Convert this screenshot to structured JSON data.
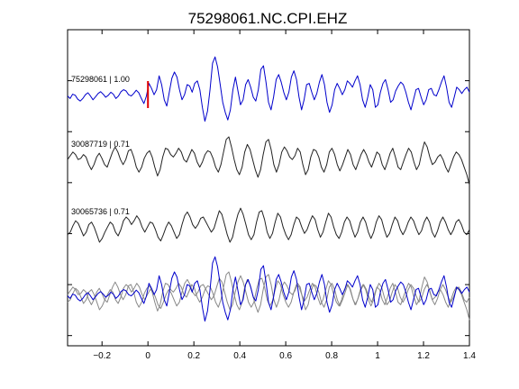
{
  "chart_data": {
    "type": "line",
    "title": "75298061.NC.CPI.EHZ",
    "xlabel": "",
    "ylabel": "",
    "xlim": [
      -0.35,
      1.4
    ],
    "x_ticks": [
      -0.2,
      0,
      0.2,
      0.4,
      0.6,
      0.8,
      1,
      1.2,
      1.4
    ],
    "x_tick_labels": [
      "−0.2",
      "0",
      "0.2",
      "0.4",
      "0.6",
      "0.8",
      "1",
      "1.2",
      "1.4"
    ],
    "grid": false,
    "pick_time": 0,
    "pick_color": "#e00000",
    "colors": {
      "primary": "#0000cc",
      "secondary": "#222222",
      "overlay_gray": "#888888"
    },
    "traces": [
      {
        "label": "75298061 | 1.00",
        "color": "#0000cc",
        "y": [
          0.05,
          -0.05,
          0.12,
          0.08,
          -0.08,
          -0.15,
          -0.05,
          0.1,
          0.18,
          0.05,
          -0.1,
          0.02,
          0.15,
          0.22,
          0.12,
          0.0,
          0.08,
          0.2,
          0.12,
          -0.05,
          0.05,
          0.22,
          0.3,
          0.25,
          0.1,
          0.05,
          0.15,
          0.28,
          0.18,
          -0.05,
          -0.25,
          0.05,
          0.55,
          0.35,
          0.1,
          0.3,
          0.85,
          0.5,
          -0.1,
          -0.35,
          0.2,
          0.75,
          1.0,
          0.8,
          0.3,
          -0.1,
          0.1,
          0.5,
          0.45,
          0.2,
          0.55,
          0.65,
          0.3,
          -0.4,
          -0.95,
          -0.55,
          0.3,
          1.35,
          1.6,
          1.2,
          0.5,
          -0.2,
          -0.6,
          -0.9,
          -0.5,
          0.3,
          0.8,
          0.25,
          -0.3,
          -0.1,
          0.5,
          0.7,
          0.4,
          0.0,
          -0.15,
          0.3,
          1.1,
          1.25,
          0.6,
          -0.2,
          -0.5,
          0.0,
          0.7,
          0.9,
          0.6,
          0.2,
          -0.1,
          0.2,
          0.8,
          1.05,
          0.7,
          0.0,
          -0.5,
          -0.1,
          0.5,
          0.55,
          0.2,
          -0.1,
          0.15,
          0.6,
          0.9,
          0.5,
          -0.2,
          -0.6,
          -0.3,
          0.3,
          0.55,
          0.35,
          0.1,
          0.3,
          0.65,
          0.55,
          0.4,
          0.65,
          0.85,
          0.5,
          -0.1,
          -0.4,
          0.0,
          0.5,
          0.3,
          -0.4,
          -0.3,
          0.2,
          0.55,
          0.7,
          0.3,
          -0.2,
          -0.1,
          0.25,
          0.45,
          0.6,
          0.5,
          0.2,
          -0.2,
          -0.5,
          -0.1,
          0.3,
          0.35,
          0.0,
          -0.3,
          -0.1,
          0.3,
          0.35,
          0.1,
          0.05,
          0.3,
          0.6,
          0.85,
          0.4,
          -0.2,
          -0.4,
          0.0,
          0.4,
          0.3,
          0.15,
          0.3,
          0.4,
          0.2
        ]
      },
      {
        "label": "30087719 | 0.71",
        "color": "#222222",
        "y": [
          0.1,
          0.25,
          0.4,
          0.3,
          0.1,
          0.15,
          0.3,
          0.2,
          -0.1,
          -0.3,
          -0.1,
          0.2,
          0.35,
          0.15,
          -0.1,
          -0.2,
          0.1,
          0.4,
          0.6,
          0.4,
          0.1,
          -0.1,
          0.1,
          0.45,
          0.5,
          0.2,
          -0.2,
          -0.4,
          -0.2,
          0.15,
          0.35,
          0.45,
          0.2,
          -0.2,
          -0.55,
          -0.3,
          0.2,
          0.55,
          0.5,
          0.3,
          0.2,
          0.35,
          0.55,
          0.4,
          0.1,
          0.0,
          0.25,
          0.5,
          0.35,
          0.0,
          -0.2,
          0.0,
          0.3,
          0.45,
          0.4,
          0.15,
          -0.2,
          -0.4,
          -0.1,
          0.4,
          0.9,
          1.0,
          0.6,
          0.1,
          -0.3,
          -0.5,
          -0.2,
          0.4,
          0.7,
          0.5,
          0.1,
          -0.3,
          -0.6,
          -0.3,
          0.3,
          0.8,
          0.9,
          0.5,
          -0.1,
          -0.4,
          -0.1,
          0.4,
          0.6,
          0.45,
          0.2,
          0.1,
          0.25,
          0.55,
          0.4,
          -0.1,
          -0.5,
          -0.3,
          0.2,
          0.5,
          0.45,
          0.2,
          -0.2,
          -0.4,
          -0.1,
          0.4,
          0.55,
          0.3,
          -0.1,
          -0.35,
          -0.1,
          0.2,
          0.5,
          0.3,
          -0.1,
          -0.3,
          0.0,
          0.3,
          0.5,
          0.3,
          0.0,
          -0.2,
          0.1,
          0.4,
          0.3,
          -0.1,
          -0.3,
          0.0,
          0.35,
          0.55,
          0.2,
          -0.2,
          -0.3,
          0.0,
          0.3,
          0.55,
          0.4,
          0.0,
          -0.3,
          -0.1,
          0.4,
          0.8,
          0.6,
          0.2,
          -0.1,
          0.0,
          0.2,
          0.3,
          0.1,
          -0.2,
          -0.4,
          -0.1,
          0.2,
          0.4,
          0.3,
          0.1,
          -0.2,
          -0.5,
          -0.9
        ]
      },
      {
        "label": "30065736 | 0.71",
        "color": "#222222",
        "y": [
          -0.2,
          -0.1,
          0.15,
          0.35,
          0.25,
          0.0,
          -0.25,
          -0.1,
          0.2,
          0.3,
          0.1,
          -0.2,
          -0.5,
          -0.35,
          -0.1,
          0.1,
          0.3,
          0.2,
          -0.1,
          -0.25,
          0.0,
          0.35,
          0.5,
          0.4,
          0.2,
          0.35,
          0.55,
          0.4,
          0.1,
          -0.1,
          0.1,
          0.3,
          0.25,
          0.0,
          -0.3,
          -0.45,
          -0.2,
          0.1,
          0.3,
          0.15,
          -0.1,
          -0.35,
          -0.2,
          0.2,
          0.55,
          0.7,
          0.5,
          0.2,
          0.05,
          0.2,
          0.45,
          0.5,
          0.3,
          0.1,
          -0.1,
          0.05,
          0.4,
          0.75,
          0.6,
          0.2,
          -0.2,
          -0.5,
          -0.3,
          0.2,
          0.6,
          0.85,
          0.6,
          0.2,
          -0.2,
          -0.4,
          -0.2,
          0.3,
          0.7,
          0.75,
          0.4,
          -0.1,
          -0.35,
          -0.15,
          0.3,
          0.65,
          0.5,
          0.1,
          -0.2,
          -0.4,
          -0.2,
          0.2,
          0.5,
          0.4,
          0.1,
          -0.15,
          0.0,
          0.3,
          0.55,
          0.4,
          0.0,
          -0.3,
          -0.1,
          0.3,
          0.65,
          0.5,
          0.1,
          -0.2,
          -0.35,
          -0.1,
          0.3,
          0.5,
          0.35,
          0.0,
          -0.3,
          -0.1,
          0.3,
          0.5,
          0.3,
          -0.1,
          -0.35,
          -0.1,
          0.3,
          0.55,
          0.4,
          0.0,
          -0.3,
          -0.15,
          0.2,
          0.5,
          0.35,
          0.0,
          -0.2,
          0.0,
          0.3,
          0.5,
          0.35,
          0.05,
          -0.2,
          -0.05,
          0.3,
          0.5,
          0.3,
          -0.1,
          -0.3,
          -0.05,
          0.3,
          0.5,
          0.3,
          0.0,
          -0.2,
          0.0,
          0.3,
          0.4,
          0.2,
          -0.1,
          -0.2,
          0.0
        ]
      }
    ],
    "overlay": {
      "description_visible": false,
      "order": [
        1,
        2,
        0
      ]
    }
  }
}
